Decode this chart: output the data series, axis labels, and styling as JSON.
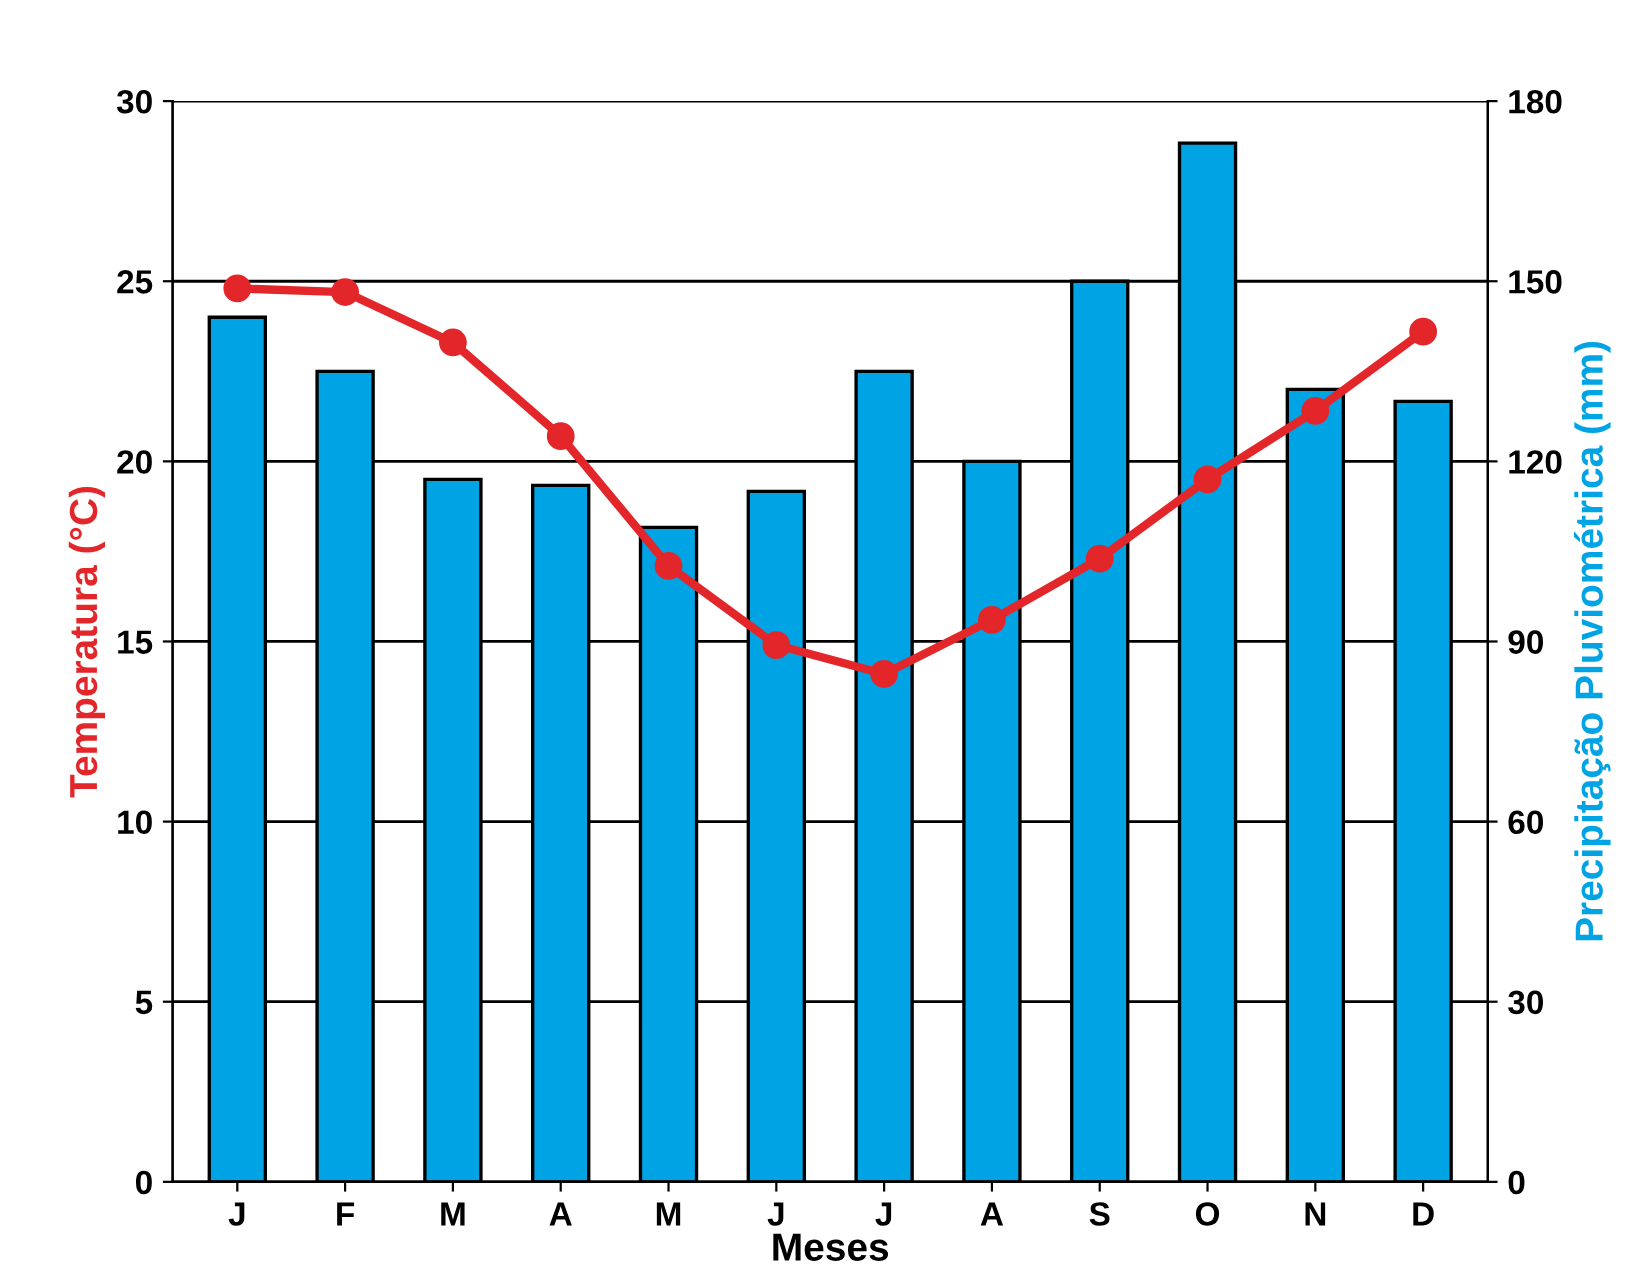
{
  "chart_data": {
    "type": "bar",
    "xlabel": "Meses",
    "ylabel": "Temperatura (°C)",
    "y2label": "Precipitação Pluviométrica (mm)",
    "categories": [
      "J",
      "F",
      "M",
      "A",
      "M",
      "J",
      "J",
      "A",
      "S",
      "O",
      "N",
      "D"
    ],
    "series": [
      {
        "axis": "y2",
        "color": "#00a3e4",
        "values": [
          144,
          135,
          117,
          116,
          109,
          115,
          135,
          120,
          150,
          173,
          132,
          130
        ]
      },
      {
        "type": "line",
        "axis": "y",
        "color": "#e3262a",
        "marker": "circle",
        "values": [
          24.8,
          24.7,
          23.3,
          20.7,
          17.1,
          14.9,
          14.1,
          15.6,
          17.3,
          19.5,
          21.4,
          23.6
        ]
      }
    ],
    "ylim": [
      0,
      30
    ],
    "yticks": [
      0,
      5,
      10,
      15,
      20,
      25,
      30
    ],
    "y2lim": [
      0,
      180
    ],
    "y2ticks": [
      0,
      30,
      60,
      90,
      120,
      150,
      180
    ],
    "grid": "y"
  }
}
